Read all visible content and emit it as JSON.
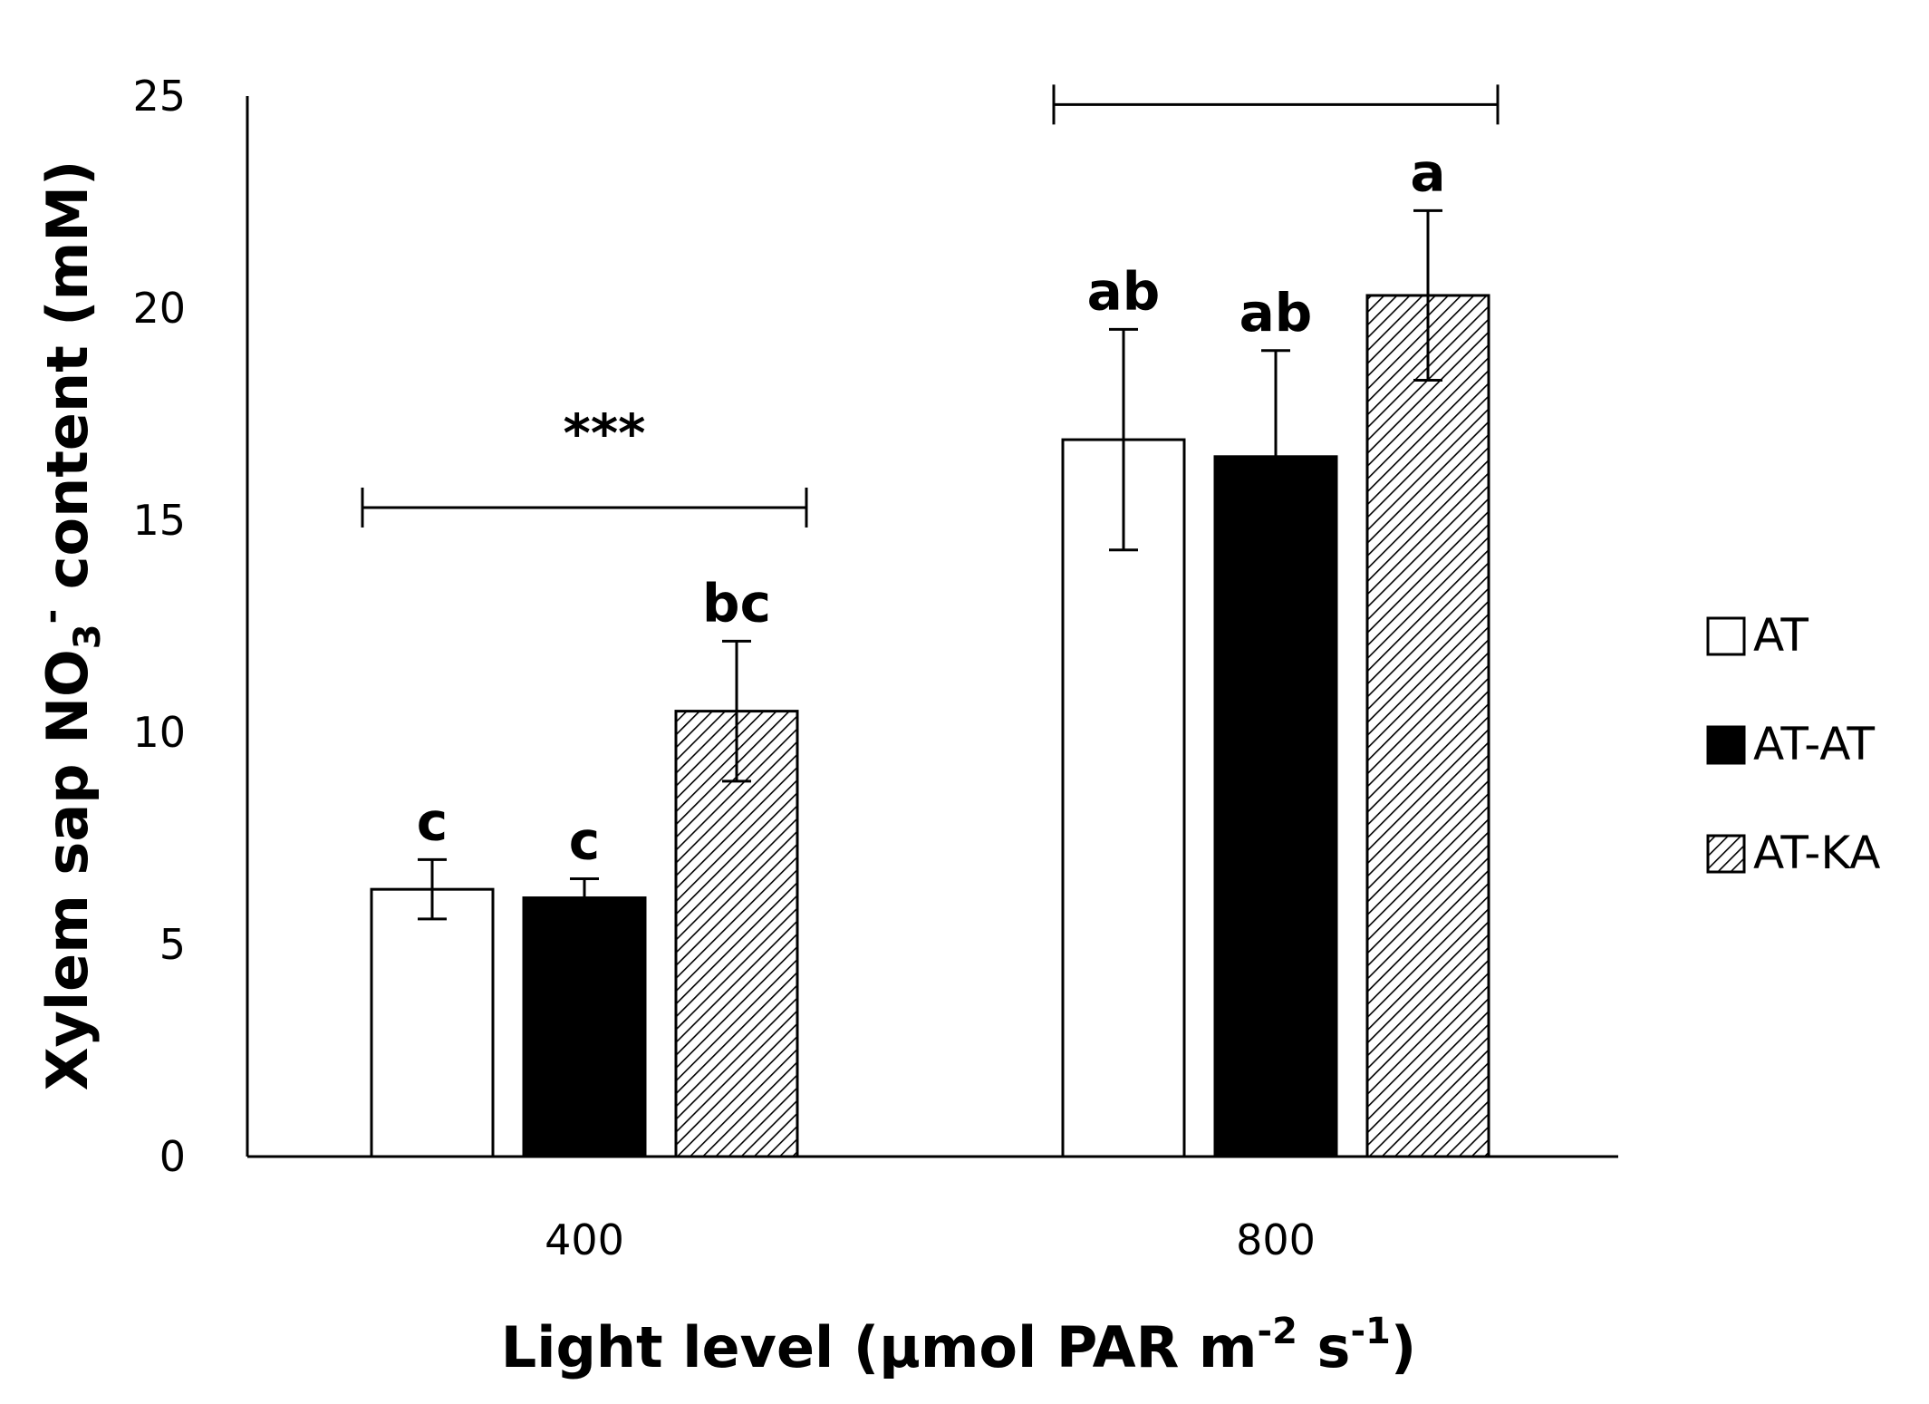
{
  "chart_data": {
    "type": "bar",
    "categories": [
      "400",
      "800"
    ],
    "series": [
      {
        "name": "AT",
        "fill": "white",
        "values": [
          6.3,
          16.9
        ],
        "errors": [
          0.7,
          2.6
        ]
      },
      {
        "name": "AT-AT",
        "fill": "black",
        "values": [
          6.1,
          16.5
        ],
        "errors": [
          0.45,
          2.5
        ]
      },
      {
        "name": "AT-KA",
        "fill": "hatch",
        "values": [
          10.5,
          20.3
        ],
        "errors": [
          1.65,
          2.0
        ]
      }
    ],
    "significance_letters": [
      [
        "c",
        "c",
        "bc"
      ],
      [
        "ab",
        "ab",
        "a"
      ]
    ],
    "brackets": [
      {
        "category": "400",
        "y": 15.3,
        "label": "***"
      },
      {
        "category": "800",
        "y": 24.8,
        "label": ""
      }
    ],
    "ylim": [
      0,
      25
    ],
    "yticks": [
      "0",
      "5",
      "10",
      "15",
      "20",
      "25"
    ],
    "y_tick_values": [
      0,
      5,
      10,
      15,
      20,
      25
    ],
    "ylabel": "Xylem sap NO",
    "ylabel_sub": "3",
    "ylabel_sup": "-",
    "ylabel_rest": " content (mM)",
    "xlabel": "Light level (μmol PAR m",
    "xlabel_sup1": "-2",
    "xlabel_mid": " s",
    "xlabel_sup2": "-1",
    "xlabel_end": ")",
    "grid": false,
    "legend_placement": "right"
  }
}
